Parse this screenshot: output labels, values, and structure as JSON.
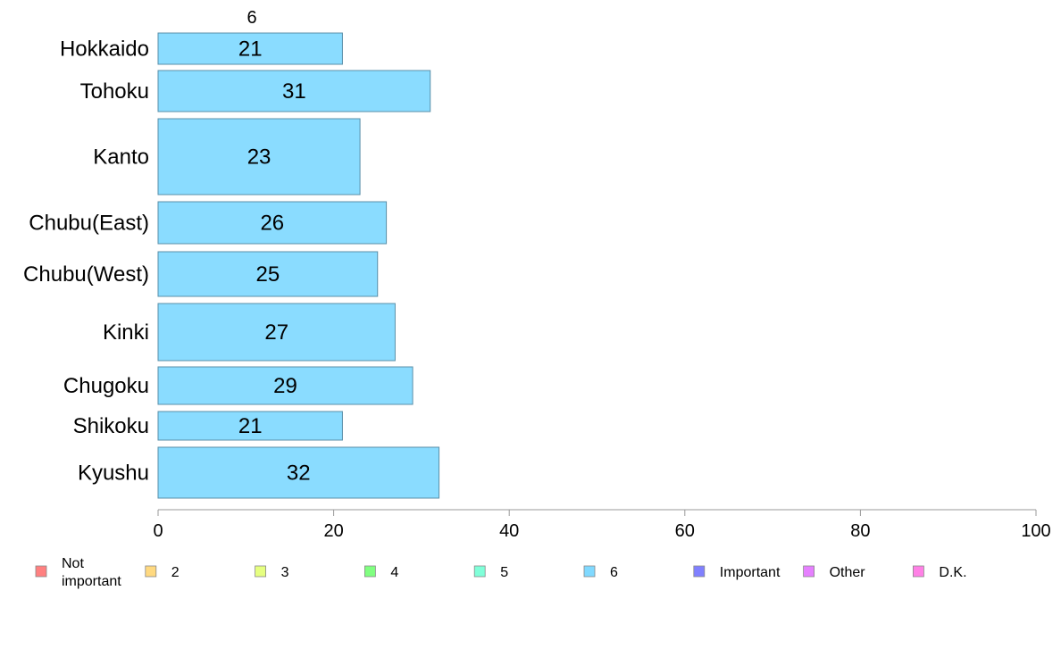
{
  "chart_data": {
    "type": "bar",
    "orientation": "horizontal",
    "column_label": "6",
    "categories": [
      "Hokkaido",
      "Tohoku",
      "Kanto",
      "Chubu(East)",
      "Chubu(West)",
      "Kinki",
      "Chugoku",
      "Shikoku",
      "Kyushu"
    ],
    "series": [
      {
        "name": "6",
        "values": [
          21,
          31,
          23,
          26,
          25,
          27,
          29,
          21,
          32
        ]
      }
    ],
    "xlim": [
      0,
      100
    ],
    "xticks": [
      0,
      20,
      40,
      60,
      80,
      100
    ],
    "bar_color": "#8adcff",
    "legend": {
      "position": "bottom",
      "items": [
        {
          "label": "Not important",
          "color": "#ff8080"
        },
        {
          "label": "2",
          "color": "#ffd980"
        },
        {
          "label": "3",
          "color": "#e6ff80"
        },
        {
          "label": "4",
          "color": "#80ff80"
        },
        {
          "label": "5",
          "color": "#80ffd9"
        },
        {
          "label": "6",
          "color": "#80d9ff"
        },
        {
          "label": "Important",
          "color": "#8080ff"
        },
        {
          "label": "Other",
          "color": "#e680ff"
        },
        {
          "label": "D.K.",
          "color": "#ff80e6"
        }
      ]
    }
  }
}
